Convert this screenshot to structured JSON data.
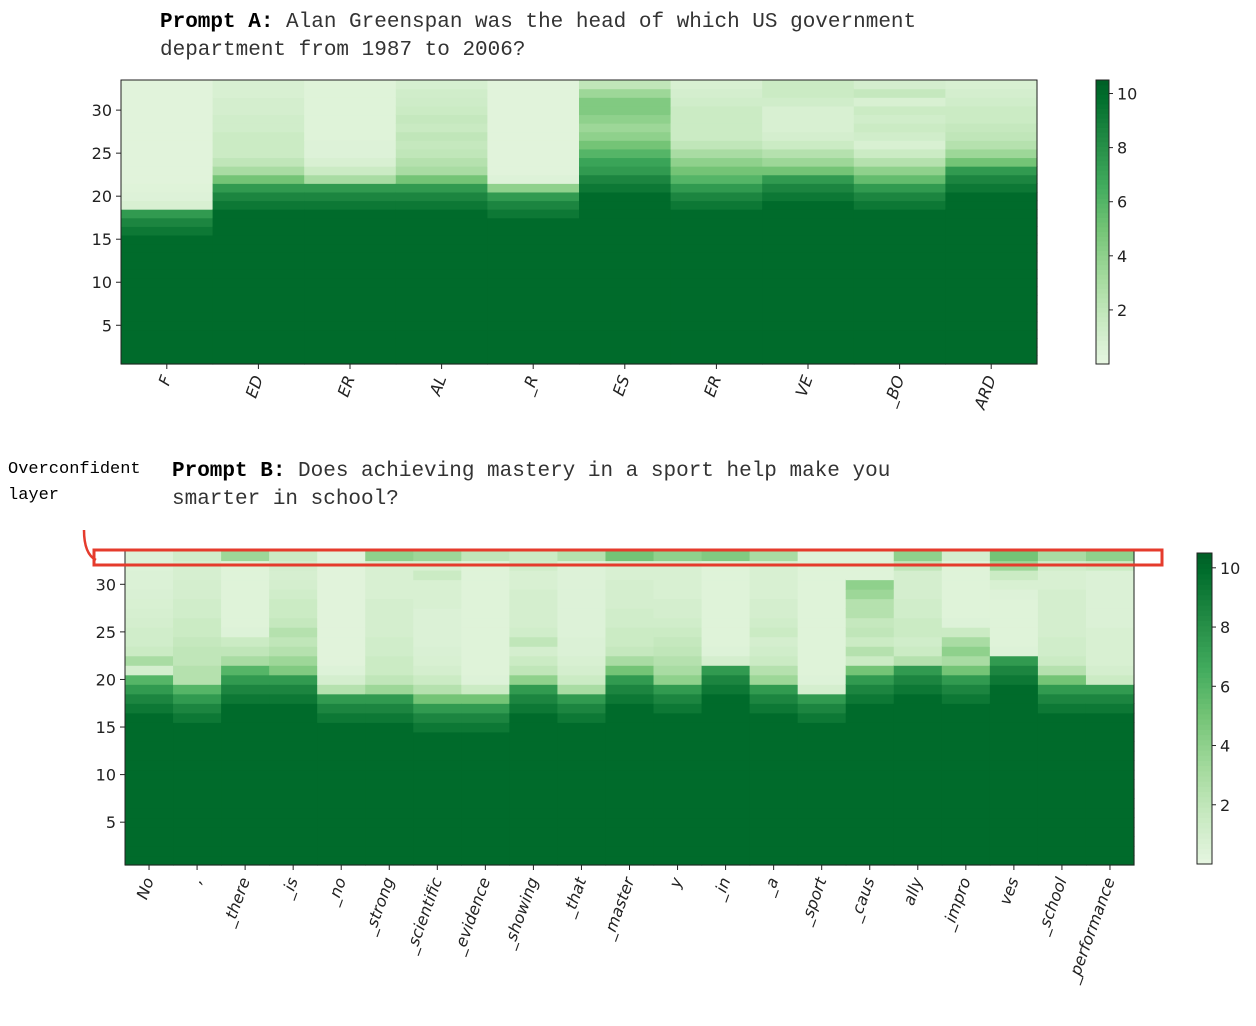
{
  "prompts": {
    "a": {
      "label": "Prompt A:",
      "line1": " Alan Greenspan was the head of which US government",
      "line2": "department from 1987 to 2006?"
    },
    "b": {
      "label": "Prompt B:",
      "line1": " Does achieving mastery in a sport help make you",
      "line2": "smarter in school?"
    }
  },
  "annotation": {
    "line1": "Overconfident",
    "line2": "layer",
    "color": "#e53b2c"
  },
  "chart_data": [
    {
      "type": "heatmap",
      "title": "",
      "xlabel": "",
      "ylabel": "",
      "categories": [
        "F",
        "ED",
        "ER",
        "AL",
        "_R",
        "ES",
        "ER",
        "VE",
        "_BO",
        "ARD"
      ],
      "yticks": [
        30,
        25,
        20,
        15,
        10,
        5
      ],
      "ylim": [
        0.5,
        33.5
      ],
      "colorbar": {
        "ticks": [
          10,
          8,
          6,
          4,
          2
        ],
        "range": [
          0,
          10.5
        ],
        "colormap": "Greens"
      },
      "dark_up_to_layer": [
        18,
        21,
        21,
        21,
        20,
        23,
        21,
        22,
        21,
        23
      ],
      "upper_values": [
        [
          0.8,
          0.5,
          0.4,
          0.3,
          0.3,
          0.3,
          0.3,
          0.3,
          0.3,
          0.3,
          0.3,
          0.3,
          0.3,
          0.3,
          0.3
        ],
        [
          5,
          3,
          2,
          1.5,
          1.5,
          1.5,
          1.2,
          1.2,
          1.0,
          1.0,
          0.8,
          0.8,
          0.8,
          0.8,
          1.2
        ],
        [
          3,
          1.5,
          0.8,
          0.5,
          0.5,
          0.4,
          0.4,
          0.4,
          0.4,
          0.4,
          0.4,
          0.4,
          1.2
        ],
        [
          5,
          3,
          2.5,
          2,
          1.8,
          2,
          1.6,
          1.8,
          1.5,
          1.3,
          1.2,
          0.9
        ],
        [
          4,
          0.5,
          0.3,
          0.3,
          0.3,
          0.3,
          0.3,
          0.3,
          0.3,
          0.3,
          0.3,
          0.3,
          0.3
        ],
        [
          7,
          6,
          5,
          4,
          3.5,
          4,
          4.5,
          4.5,
          3.5,
          2,
          1.5,
          1.2
        ],
        [
          6,
          5,
          4,
          3,
          2,
          1.5,
          1.5,
          1.5,
          1.5,
          1.2,
          1.0,
          0.8
        ],
        [
          5,
          3.5,
          2.5,
          1.5,
          1,
          0.8,
          0.8,
          0.8,
          1.2,
          1.5,
          1.5
        ],
        [
          5.5,
          4,
          2.5,
          1.5,
          0.8,
          1.2,
          1.5,
          1.2,
          1.5,
          0.8,
          1.8,
          1.0
        ],
        [
          5,
          3.5,
          2.5,
          2,
          1.8,
          1.5,
          1.5,
          1.2,
          1.0,
          0.8
        ]
      ]
    },
    {
      "type": "heatmap",
      "title": "",
      "xlabel": "",
      "ylabel": "",
      "categories": [
        "No",
        ",",
        "_there",
        "_is",
        "_no",
        "_strong",
        "_scientific",
        "_evidence",
        "_showing",
        "_that",
        "_master",
        "y",
        "_in",
        "_a",
        "_sport",
        "_caus",
        "ally",
        "_impro",
        "ves",
        "_school",
        "_performance"
      ],
      "yticks": [
        30,
        25,
        20,
        15,
        10,
        5
      ],
      "ylim": [
        0.5,
        33.5
      ],
      "colorbar": {
        "ticks": [
          10,
          8,
          6,
          4,
          2
        ],
        "range": [
          0,
          10.5
        ],
        "colormap": "Greens"
      },
      "highlight_layer": 33,
      "dark_up_to_layer": [
        19,
        18,
        20,
        20,
        18,
        18,
        17,
        17,
        19,
        18,
        20,
        19,
        21,
        19,
        18,
        20,
        21,
        20,
        22,
        19,
        19
      ],
      "upper_values": [
        [
          6,
          1,
          3,
          1.5,
          1.2,
          1.2,
          1.0,
          0.9,
          0.8,
          0.7,
          0.6,
          0.6,
          0.5,
          0.5
        ],
        [
          6,
          2.5,
          2.5,
          2,
          2,
          1.8,
          1.5,
          1.5,
          1.2,
          1.2,
          1.0,
          1.0,
          0.9,
          0.9,
          1.2
        ],
        [
          6,
          3,
          2,
          1.5,
          0.5,
          0.4,
          0.4,
          0.4,
          0.4,
          0.4,
          0.4,
          0.4,
          3.5
        ],
        [
          4.5,
          3.5,
          2.5,
          2,
          2.5,
          1.8,
          1.5,
          1.5,
          1.2,
          1.0,
          0.9,
          1.0,
          1.5
        ],
        [
          2.5,
          1,
          0.5,
          0.3,
          0.3,
          0.3,
          0.3,
          0.3,
          0.3,
          0.3,
          0.3,
          0.3,
          0.3,
          0.3,
          0.3
        ],
        [
          3.5,
          2,
          1.5,
          1.5,
          1.2,
          1.2,
          1.0,
          1.0,
          1.0,
          1.0,
          0.8,
          0.8,
          0.8,
          0.8,
          4
        ],
        [
          5,
          2.5,
          1.5,
          1,
          0.8,
          0.7,
          0.6,
          0.6,
          0.6,
          0.6,
          0.8,
          0.8,
          0.8,
          1.5,
          0.8,
          3.5
        ],
        [
          5,
          1.5,
          0.5,
          0.4,
          0.4,
          0.4,
          0.4,
          0.4,
          0.4,
          0.4,
          0.4,
          0.4,
          0.4,
          0.4,
          0.4,
          2
        ],
        [
          4,
          2,
          1.5,
          1,
          2,
          1.2,
          1,
          1,
          1,
          1,
          0.8,
          0.8,
          1.2,
          1.5
        ],
        [
          3,
          1.5,
          1,
          0.8,
          0.6,
          0.6,
          0.5,
          0.5,
          0.5,
          0.5,
          0.5,
          0.5,
          0.5,
          0.5,
          2.5
        ],
        [
          5,
          3,
          1.8,
          1.5,
          1.5,
          1.2,
          1.2,
          1.0,
          1.0,
          1.0,
          0.8,
          0.8,
          5
        ],
        [
          4,
          3,
          2.5,
          2,
          1.8,
          1.5,
          1.2,
          1.0,
          1.0,
          0.8,
          0.8,
          0.8,
          0.8,
          4
        ],
        [
          1,
          0.5,
          0.4,
          0.4,
          0.4,
          0.4,
          0.4,
          0.4,
          0.4,
          0.4,
          0.4,
          4.5
        ],
        [
          3.5,
          2.5,
          1.5,
          1.2,
          1,
          1.5,
          1.2,
          1.0,
          1.0,
          0.8,
          0.8,
          0.8,
          0.8,
          3
        ],
        [
          1,
          0.5,
          0.4,
          0.4,
          0.4,
          0.4,
          0.4,
          0.4,
          0.4,
          0.4,
          0.4,
          0.4,
          0.4,
          0.4,
          0.4,
          2
        ],
        [
          5,
          1.5,
          2.5,
          1.5,
          2,
          1.8,
          2.5,
          2.5,
          3.5,
          4
        ],
        [
          2.5,
          1.5,
          1.2,
          1.5,
          1.5,
          1.2,
          1.2,
          1.0,
          1.0,
          1.0,
          2,
          4
        ],
        [
          5,
          3,
          4,
          3,
          1.5,
          0.5,
          0.4,
          0.4,
          0.4,
          0.4,
          0.4,
          0.4,
          1
        ],
        [
          0.5,
          0.4,
          0.4,
          0.4,
          0.4,
          0.4,
          0.5,
          0.8,
          1.5,
          3.5,
          5
        ],
        [
          5,
          2.5,
          1.5,
          1.2,
          1.2,
          1.0,
          1.0,
          1.0,
          1.0,
          1.0,
          0.8,
          0.8,
          1.2,
          3
        ],
        [
          1.5,
          1.0,
          0.8,
          0.8,
          0.8,
          0.8,
          0.6,
          0.6,
          0.6,
          0.6,
          0.6,
          0.6,
          1.5,
          4
        ]
      ]
    }
  ]
}
